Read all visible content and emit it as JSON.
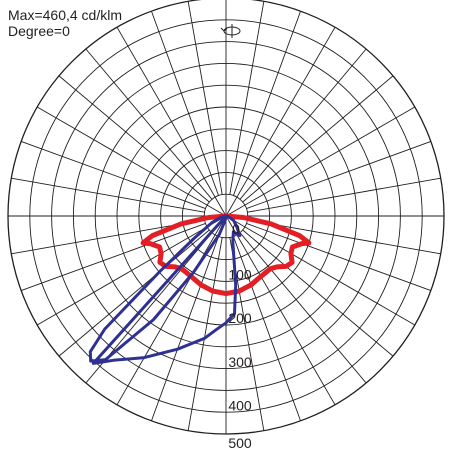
{
  "header": {
    "max_text": "Max=460,4 cd/klm",
    "degree_text": "Degree=0"
  },
  "icons": {
    "rotation": "rotation-icon"
  },
  "colors": {
    "grid": "#231f20",
    "series_c0": "#e31e24",
    "series_c90": "#2e3192"
  },
  "chart_data": {
    "type": "polar",
    "title": "",
    "radial_ticks": [
      0,
      100,
      200,
      300,
      400,
      500
    ],
    "radial_labels": [
      "0",
      "100",
      "200",
      "300",
      "400",
      "500"
    ],
    "radial_max": 500,
    "grid_circle_step": 50,
    "angle_step_deg": 10,
    "orientation": "0 deg = nadir (down)",
    "grid": true,
    "series": [
      {
        "key": "c0",
        "color": "#e31e24",
        "points": [
          {
            "angle": -90,
            "value": 0
          },
          {
            "angle": -85,
            "value": 40
          },
          {
            "angle": -80,
            "value": 105
          },
          {
            "angle": -75,
            "value": 175
          },
          {
            "angle": -72,
            "value": 200
          },
          {
            "angle": -70,
            "value": 185
          },
          {
            "angle": -65,
            "value": 168
          },
          {
            "angle": -60,
            "value": 172
          },
          {
            "angle": -55,
            "value": 185
          },
          {
            "angle": -50,
            "value": 180
          },
          {
            "angle": -45,
            "value": 165
          },
          {
            "angle": -40,
            "value": 158
          },
          {
            "angle": -30,
            "value": 160
          },
          {
            "angle": -20,
            "value": 168
          },
          {
            "angle": -10,
            "value": 175
          },
          {
            "angle": 0,
            "value": 178
          },
          {
            "angle": 10,
            "value": 175
          },
          {
            "angle": 20,
            "value": 168
          },
          {
            "angle": 30,
            "value": 160
          },
          {
            "angle": 40,
            "value": 158
          },
          {
            "angle": 45,
            "value": 165
          },
          {
            "angle": 50,
            "value": 180
          },
          {
            "angle": 55,
            "value": 185
          },
          {
            "angle": 60,
            "value": 172
          },
          {
            "angle": 65,
            "value": 168
          },
          {
            "angle": 70,
            "value": 185
          },
          {
            "angle": 72,
            "value": 200
          },
          {
            "angle": 75,
            "value": 175
          },
          {
            "angle": 80,
            "value": 105
          },
          {
            "angle": 85,
            "value": 40
          },
          {
            "angle": 90,
            "value": 0
          }
        ]
      },
      {
        "key": "c90",
        "color": "#2e3192",
        "points": [
          {
            "angle": 0,
            "value": 0
          },
          {
            "angle": -10,
            "value": 10
          },
          {
            "angle": -20,
            "value": 45
          },
          {
            "angle": -30,
            "value": 150
          },
          {
            "angle": -35,
            "value": 290
          },
          {
            "angle": -40,
            "value": 430
          },
          {
            "angle": -43,
            "value": 455
          },
          {
            "angle": -45,
            "value": 440
          },
          {
            "angle": -47,
            "value": 380
          },
          {
            "angle": -50,
            "value": 200
          },
          {
            "angle": -55,
            "value": 90
          },
          {
            "angle": -65,
            "value": 35
          },
          {
            "angle": -80,
            "value": 10
          },
          {
            "angle": -90,
            "value": 0
          },
          {
            "angle": 80,
            "value": 5
          },
          {
            "angle": 60,
            "value": 20
          },
          {
            "angle": 45,
            "value": 35
          },
          {
            "angle": 35,
            "value": 55
          },
          {
            "angle": 25,
            "value": 40
          },
          {
            "angle": 15,
            "value": 60
          },
          {
            "angle": 8,
            "value": 160
          },
          {
            "angle": 5,
            "value": 225
          },
          {
            "angle": 0,
            "value": 245
          },
          {
            "angle": -5,
            "value": 262
          },
          {
            "angle": -10,
            "value": 285
          },
          {
            "angle": -20,
            "value": 325
          },
          {
            "angle": -30,
            "value": 375
          },
          {
            "angle": -38,
            "value": 420
          },
          {
            "angle": -42,
            "value": 455
          }
        ]
      }
    ]
  }
}
